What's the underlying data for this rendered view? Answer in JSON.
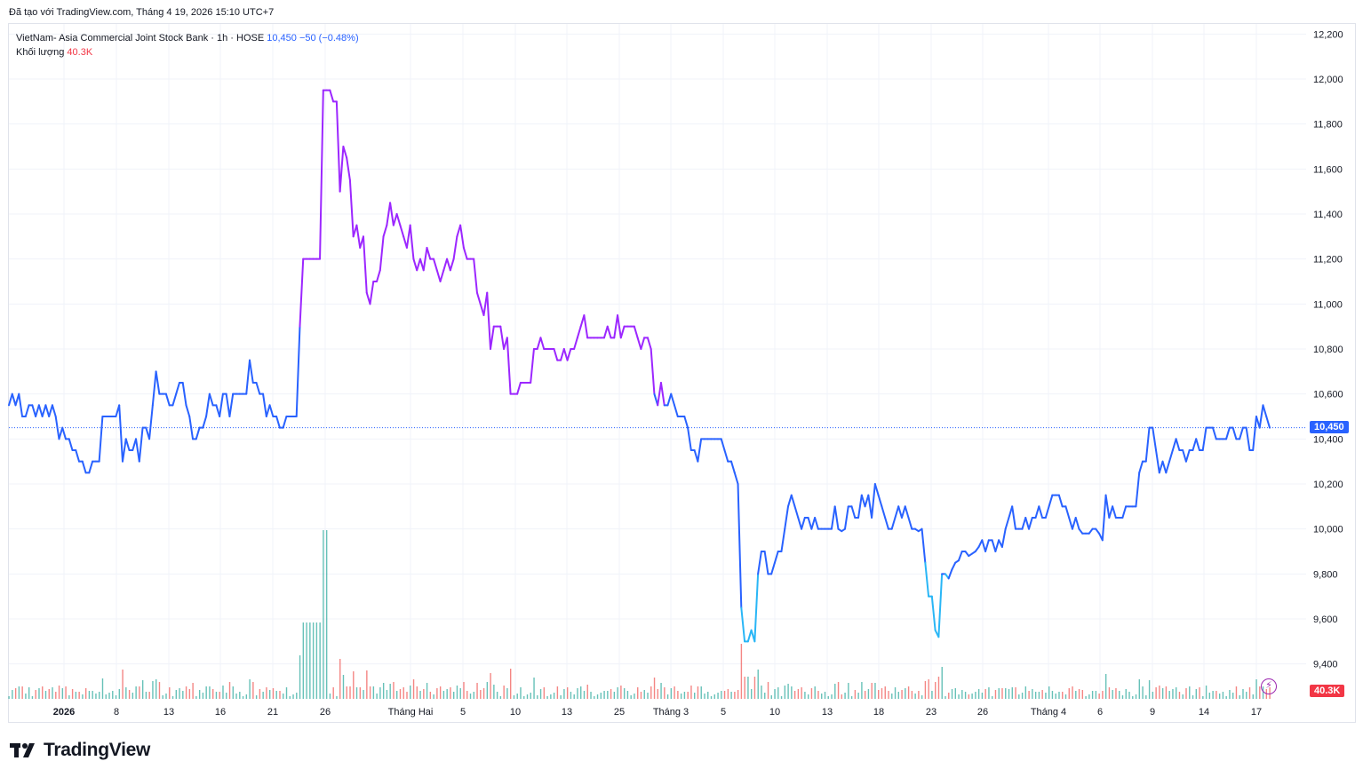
{
  "caption": "Đã tạo với TradingView.com, Tháng 4 19, 2026 15:10 UTC+7",
  "legend": {
    "symbol": "VietNam- Asia Commercial Joint Stock Bank · 1h · HOSE",
    "price": "10,450",
    "change": "−50 (−0.48%)",
    "volume_label": "Khối lượng",
    "volume_value": "40.3K"
  },
  "badges": {
    "last_price": "10,450",
    "last_volume": "40.3K"
  },
  "logo_text": "TradingView",
  "colors": {
    "line_start": "#2962ff",
    "line_mid": "#9c27ff",
    "line_low": "#29b6f6",
    "vol_up": "#26a69a",
    "vol_down": "#ef5350",
    "last_price_badge": "#2962ff",
    "volume_badge": "#f23645"
  },
  "chart_data": {
    "type": "line",
    "title": "VietNam- Asia Commercial Joint Stock Bank · 1h · HOSE",
    "ylim": [
      9300,
      12300
    ],
    "yticks": [
      "12,200",
      "12,000",
      "11,800",
      "11,600",
      "11,400",
      "11,200",
      "11,000",
      "10,800",
      "10,600",
      "10,400",
      "10,200",
      "10,000",
      "9,800",
      "9,600",
      "9,400"
    ],
    "x_labels": [
      "2026",
      "8",
      "13",
      "16",
      "21",
      "26",
      "Tháng Hai",
      "5",
      "10",
      "13",
      "25",
      "Tháng 3",
      "5",
      "10",
      "13",
      "18",
      "23",
      "26",
      "Tháng 4",
      "6",
      "9",
      "14",
      "17"
    ],
    "last_price": 10450,
    "series": [
      {
        "values": [
          10550,
          10600,
          10550,
          10600,
          10500,
          10500,
          10550,
          10550,
          10500,
          10550,
          10500,
          10550,
          10500,
          10550,
          10500,
          10400,
          10450,
          10400,
          10400,
          10350,
          10350,
          10300,
          10300,
          10250,
          10250,
          10300,
          10300,
          10300,
          10500,
          10500,
          10500,
          10500,
          10500,
          10550,
          10300,
          10400,
          10350,
          10350,
          10400,
          10300,
          10450,
          10450,
          10400,
          10550,
          10700,
          10600,
          10600,
          10600,
          10550,
          10550,
          10600,
          10650,
          10650,
          10550,
          10500,
          10400,
          10400,
          10450,
          10450,
          10500,
          10600,
          10550,
          10550,
          10500,
          10600,
          10600,
          10500,
          10600,
          10600,
          10600,
          10600,
          10600,
          10750,
          10650,
          10650,
          10600,
          10600,
          10500,
          10550,
          10500,
          10500,
          10450,
          10450,
          10500,
          10500,
          10500,
          10500,
          10900,
          11200,
          11200,
          11200,
          11200,
          11200,
          11200,
          11950,
          11950,
          11950,
          11900,
          11900,
          11500,
          11700,
          11650,
          11550,
          11300,
          11350,
          11250,
          11300,
          11050,
          11000,
          11100,
          11100,
          11150,
          11300,
          11350,
          11450,
          11350,
          11400,
          11350,
          11300,
          11250,
          11350,
          11200,
          11150,
          11200,
          11150,
          11250,
          11200,
          11200,
          11150,
          11100,
          11150,
          11200,
          11150,
          11200,
          11300,
          11350,
          11250,
          11200,
          11200,
          11200,
          11050,
          11000,
          10950,
          11050,
          10800,
          10900,
          10900,
          10900,
          10800,
          10850,
          10600,
          10600,
          10600,
          10650,
          10650,
          10650,
          10650,
          10800,
          10800,
          10850,
          10800,
          10800,
          10800,
          10800,
          10750,
          10750,
          10800,
          10750,
          10800,
          10800,
          10850,
          10900,
          10950,
          10850,
          10850,
          10850,
          10850,
          10850,
          10850,
          10900,
          10850,
          10850,
          10950,
          10850,
          10900,
          10900,
          10900,
          10900,
          10850,
          10800,
          10850,
          10850,
          10800,
          10600,
          10550,
          10650,
          10550,
          10550,
          10600,
          10550,
          10500,
          10500,
          10500,
          10450,
          10350,
          10350,
          10300,
          10400,
          10400,
          10400,
          10400,
          10400,
          10400,
          10400,
          10350,
          10300,
          10300,
          10250,
          10200,
          9650,
          9500,
          9500,
          9550,
          9500,
          9800,
          9900,
          9900,
          9800,
          9800,
          9850,
          9900,
          9900,
          10000,
          10100,
          10150,
          10100,
          10050,
          10000,
          10050,
          10050,
          10000,
          10050,
          10000,
          10000,
          10000,
          10000,
          10000,
          10100,
          10000,
          9990,
          10000,
          10100,
          10100,
          10050,
          10050,
          10150,
          10100,
          10150,
          10050,
          10200,
          10150,
          10100,
          10050,
          10000,
          10000,
          10050,
          10100,
          10050,
          10100,
          10050,
          10000,
          10000,
          9990,
          10000,
          9850,
          9700,
          9700,
          9550,
          9520,
          9800,
          9800,
          9780,
          9820,
          9850,
          9860,
          9900,
          9900,
          9880,
          9890,
          9900,
          9920,
          9950,
          9900,
          9950,
          9950,
          9900,
          9950,
          9920,
          10000,
          10050,
          10100,
          10000,
          10000,
          10000,
          10050,
          10000,
          10050,
          10050,
          10100,
          10050,
          10050,
          10100,
          10150,
          10150,
          10150,
          10100,
          10100,
          10050,
          10000,
          10050,
          10000,
          9980,
          9980,
          9980,
          10000,
          10000,
          9980,
          9950,
          10150,
          10050,
          10100,
          10050,
          10050,
          10050,
          10100,
          10100,
          10100,
          10100,
          10250,
          10300,
          10300,
          10450,
          10450,
          10350,
          10250,
          10300,
          10250,
          10300,
          10350,
          10400,
          10350,
          10350,
          10300,
          10350,
          10350,
          10400,
          10350,
          10350,
          10450,
          10450,
          10450,
          10400,
          10400,
          10400,
          10400,
          10450,
          10450,
          10400,
          10400,
          10450,
          10450,
          10350,
          10350,
          10500,
          10450,
          10550,
          10500,
          10450
        ]
      }
    ],
    "volume": {
      "up_color": "#26a69a",
      "down_color": "#ef5350",
      "max_label_value": 40300
    }
  }
}
